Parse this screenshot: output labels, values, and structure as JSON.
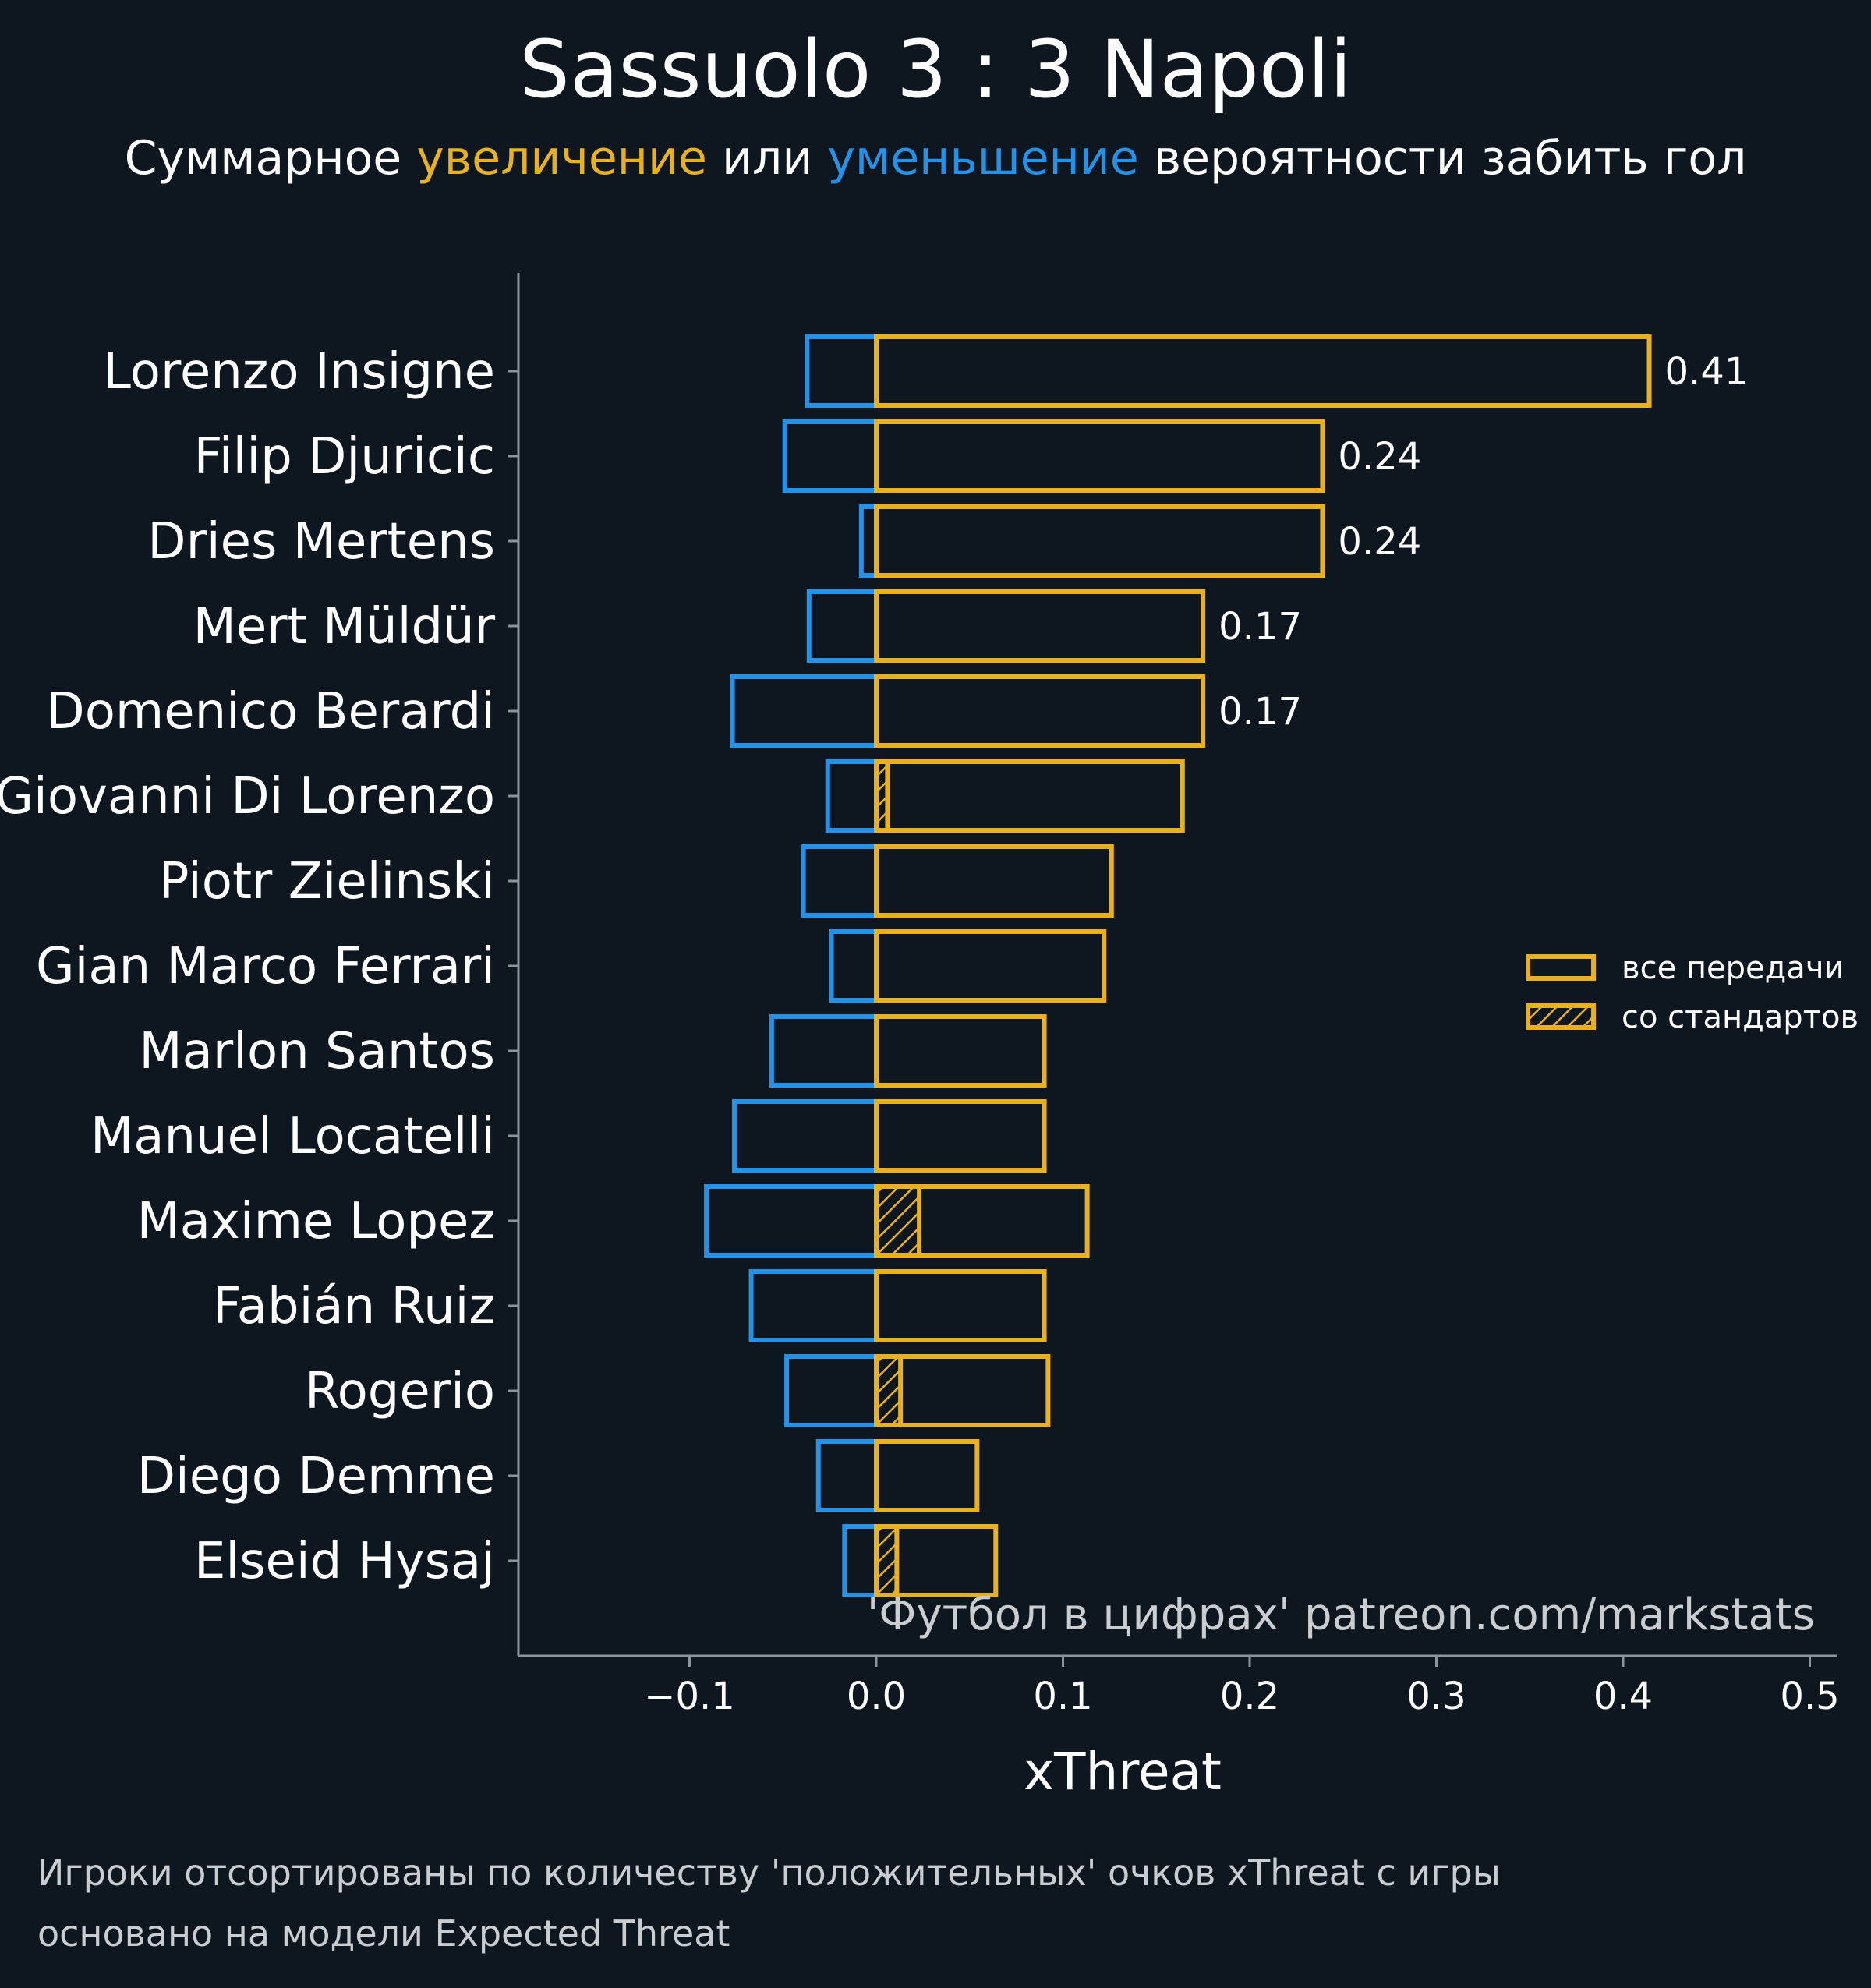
{
  "header": {
    "title": "Sassuolo 3 : 3 Napoli",
    "subtitle_prefix": "Суммарное",
    "subtitle_increase": "увеличение",
    "subtitle_or": "или",
    "subtitle_decrease": "уменьшение",
    "subtitle_suffix": "вероятности забить гол"
  },
  "footer": {
    "note_line1": "Игроки отсортированы по количеству 'положительных' очков xThreat с игры",
    "note_line2": "основано на модели Expected Threat"
  },
  "colors": {
    "background": "#0e1720",
    "positive": "#e8b21e",
    "negative": "#2492e6",
    "axis": "#8a949c",
    "text": "#ffffff"
  },
  "chart_data": {
    "type": "bar",
    "orientation": "horizontal",
    "xlabel": "xThreat",
    "xlim": [
      -0.19,
      0.515
    ],
    "xticks": [
      -0.1,
      0.0,
      0.1,
      0.2,
      0.3,
      0.4,
      0.5
    ],
    "xtick_labels": [
      "−0.1",
      "0.0",
      "0.1",
      "0.2",
      "0.3",
      "0.4",
      "0.5"
    ],
    "watermark": "'Футбол в цифрах' patreon.com/markstats",
    "legend": {
      "position": "center-right",
      "entries": [
        {
          "label": "все передачи",
          "style": "outline"
        },
        {
          "label": "со стандартов",
          "style": "hatched"
        }
      ]
    },
    "categories": [
      "Lorenzo Insigne",
      "Filip Djuricic",
      "Dries Mertens",
      "Mert Müldür",
      "Domenico Berardi",
      "Giovanni Di Lorenzo",
      "Piotr Zielinski",
      "Gian Marco Ferrari",
      "Marlon Santos",
      "Manuel Locatelli",
      "Maxime Lopez",
      "Fabián Ruiz",
      "Rogerio",
      "Diego Demme",
      "Elseid Hysaj"
    ],
    "series": [
      {
        "name": "увеличение (все передачи)",
        "values": [
          0.414,
          0.239,
          0.239,
          0.175,
          0.175,
          0.164,
          0.126,
          0.122,
          0.09,
          0.09,
          0.113,
          0.09,
          0.092,
          0.054,
          0.064
        ]
      },
      {
        "name": "уменьшение",
        "values": [
          -0.037,
          -0.049,
          -0.008,
          -0.036,
          -0.077,
          -0.026,
          -0.039,
          -0.024,
          -0.056,
          -0.076,
          -0.091,
          -0.067,
          -0.048,
          -0.031,
          -0.017
        ]
      },
      {
        "name": "со стандартов",
        "values": [
          0,
          0,
          0,
          0,
          0,
          0.006,
          0,
          0,
          0,
          0,
          0.023,
          0,
          0.013,
          0,
          0.011
        ]
      }
    ],
    "data_labels": [
      "0.41",
      "0.24",
      "0.24",
      "0.17",
      "0.17"
    ]
  }
}
